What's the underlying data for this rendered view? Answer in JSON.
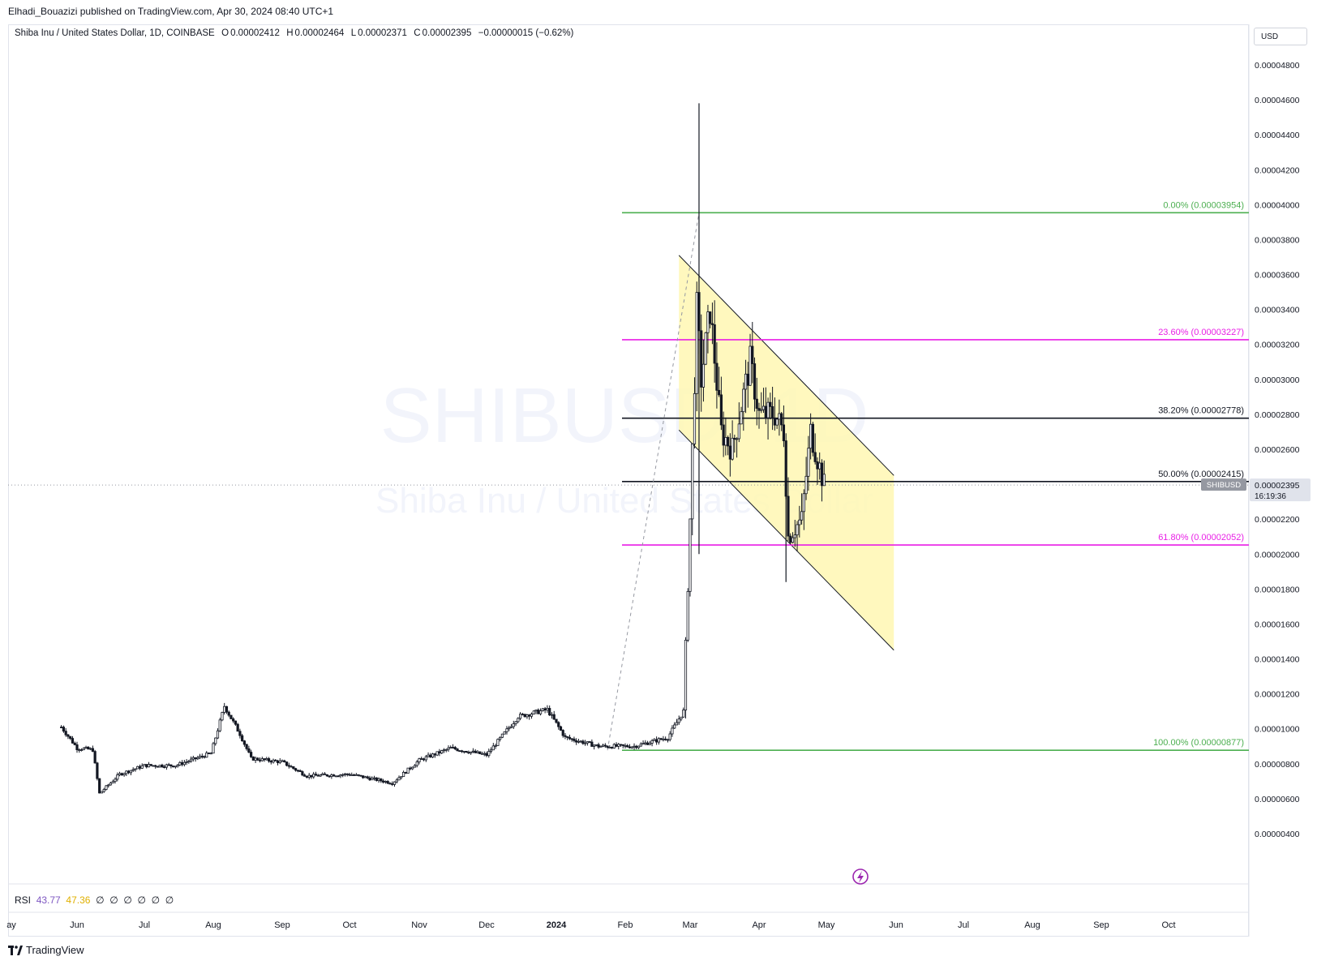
{
  "header": {
    "publish_line": "Elhadi_Bouazizi published on TradingView.com, Apr 30, 2024 08:40 UTC+1"
  },
  "legend": {
    "symbol_desc": "Shiba Inu / United States Dollar, 1D, COINBASE",
    "o_label": "O",
    "o_value": "0.00002412",
    "h_label": "H",
    "h_value": "0.00002464",
    "l_label": "L",
    "l_value": "0.00002371",
    "c_label": "C",
    "c_value": "0.00002395",
    "change": "−0.00000015 (−0.62%)"
  },
  "currency": "USD",
  "watermark": {
    "symbol": "SHIBUSD, 1D",
    "name": "Shiba Inu / United States Dollar"
  },
  "price_label": {
    "ticker": "SHIBUSD",
    "price": "0.00002395",
    "countdown": "16:19:36"
  },
  "rsi": {
    "label": "RSI",
    "value1": "43.77",
    "value2": "47.36",
    "nulls": [
      "∅",
      "∅",
      "∅",
      "∅",
      "∅",
      "∅"
    ]
  },
  "footer": {
    "brand": "TradingView"
  },
  "colors": {
    "green": "#4caf50",
    "magenta": "#e91ee6",
    "black": "#131722",
    "channel_fill": "#fff7b3",
    "rsi1": "#7e57c2",
    "rsi2": "#f4c430"
  },
  "chart_data": {
    "type": "candlestick",
    "title": "Shiba Inu / United States Dollar, 1D, COINBASE",
    "y_axis": {
      "ticks": [
        4e-06,
        6e-06,
        8e-06,
        1e-05,
        1.2e-05,
        1.4e-05,
        1.6e-05,
        1.8e-05,
        2e-05,
        2.2e-05,
        2.4e-05,
        2.6e-05,
        2.8e-05,
        3e-05,
        3.2e-05,
        3.4e-05,
        3.6e-05,
        3.8e-05,
        4e-05,
        4.2e-05,
        4.4e-05,
        4.6e-05,
        4.8e-05
      ],
      "tick_labels": [
        "0.00000400",
        "0.00000600",
        "0.00000800",
        "0.00001000",
        "0.00001200",
        "0.00001400",
        "0.00001600",
        "0.00001800",
        "0.00002000",
        "0.00002200",
        "0.00002400",
        "0.00002600",
        "0.00002800",
        "0.00003000",
        "0.00003200",
        "0.00003400",
        "0.00003600",
        "0.00003800",
        "0.00004000",
        "0.00004200",
        "0.00004400",
        "0.00004600",
        "0.00004800"
      ]
    },
    "x_axis": {
      "tick_labels": [
        "ay",
        "Jun",
        "Jul",
        "Aug",
        "Sep",
        "Oct",
        "Nov",
        "Dec",
        "2024",
        "Feb",
        "Mar",
        "Apr",
        "May",
        "Jun",
        "Jul",
        "Aug",
        "Sep",
        "Oct"
      ]
    },
    "fib_levels": [
      {
        "label": "0.00% (0.00003954)",
        "value": 3.954e-05,
        "color": "#4caf50"
      },
      {
        "label": "23.60% (0.00003227)",
        "value": 3.227e-05,
        "color": "#e91ee6"
      },
      {
        "label": "38.20% (0.00002778)",
        "value": 2.778e-05,
        "color": "#131722"
      },
      {
        "label": "50.00% (0.00002415)",
        "value": 2.415e-05,
        "color": "#131722"
      },
      {
        "label": "61.80% (0.00002052)",
        "value": 2.052e-05,
        "color": "#e91ee6"
      },
      {
        "label": "100.00% (0.00000877)",
        "value": 8.77e-06,
        "color": "#4caf50"
      }
    ],
    "last_price": 2.395e-05,
    "price_path": [
      [
        "2023-05-25",
        1.01e-05
      ],
      [
        "2023-06-01",
        8.9e-06
      ],
      [
        "2023-06-08",
        8.8e-06
      ],
      [
        "2023-06-11",
        6.3e-06
      ],
      [
        "2023-06-20",
        7.4e-06
      ],
      [
        "2023-07-01",
        7.9e-06
      ],
      [
        "2023-07-15",
        7.9e-06
      ],
      [
        "2023-07-31",
        8.6e-06
      ],
      [
        "2023-08-06",
        1.13e-05
      ],
      [
        "2023-08-13",
        9.7e-06
      ],
      [
        "2023-08-18",
        8.3e-06
      ],
      [
        "2023-09-01",
        8.1e-06
      ],
      [
        "2023-09-12",
        7.3e-06
      ],
      [
        "2023-10-01",
        7.4e-06
      ],
      [
        "2023-10-20",
        6.9e-06
      ],
      [
        "2023-11-01",
        8.2e-06
      ],
      [
        "2023-11-15",
        8.9e-06
      ],
      [
        "2023-12-01",
        8.5e-06
      ],
      [
        "2023-12-15",
        1.07e-05
      ],
      [
        "2023-12-28",
        1.11e-05
      ],
      [
        "2024-01-05",
        9.5e-06
      ],
      [
        "2024-01-20",
        9e-06
      ],
      [
        "2024-02-05",
        9e-06
      ],
      [
        "2024-02-20",
        9.5e-06
      ],
      [
        "2024-02-27",
        1.1e-05
      ],
      [
        "2024-03-01",
        2.2e-05
      ],
      [
        "2024-03-04",
        3.4e-05
      ],
      [
        "2024-03-06",
        3e-05
      ],
      [
        "2024-03-10",
        3.4e-05
      ],
      [
        "2024-03-15",
        2.7e-05
      ],
      [
        "2024-03-20",
        2.6e-05
      ],
      [
        "2024-03-28",
        3.1e-05
      ],
      [
        "2024-04-01",
        2.8e-05
      ],
      [
        "2024-04-08",
        2.8e-05
      ],
      [
        "2024-04-12",
        2.7e-05
      ],
      [
        "2024-04-14",
        2.1e-05
      ],
      [
        "2024-04-20",
        2.2e-05
      ],
      [
        "2024-04-24",
        2.7e-05
      ],
      [
        "2024-04-30",
        2.395e-05
      ]
    ],
    "notable_wicks": [
      [
        "2024-03-05",
        4.58e-05,
        2e-05
      ],
      [
        "2024-04-13",
        2.45e-05,
        1.84e-05
      ]
    ],
    "descending_channel": {
      "shaded": true,
      "upper": [
        [
          "2024-02-25",
          3.71e-05
        ],
        [
          "2024-05-31",
          2.45e-05
        ]
      ],
      "lower": [
        [
          "2024-02-25",
          2.71e-05
        ],
        [
          "2024-05-31",
          1.45e-05
        ]
      ]
    }
  }
}
